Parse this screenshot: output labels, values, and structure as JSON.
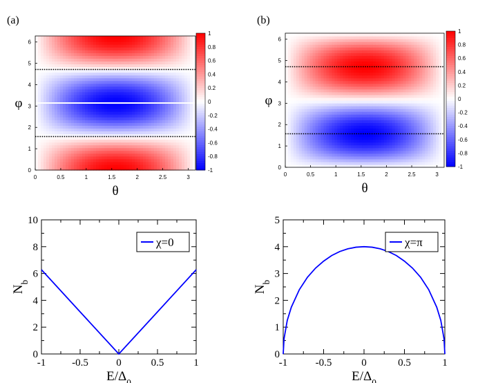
{
  "panel_labels": [
    "(a)",
    "(b)"
  ],
  "chart_data": [
    {
      "type": "heatmap",
      "panel": "(a)",
      "xlabel": "θ",
      "ylabel": "φ",
      "xlim": [
        0,
        3.14159
      ],
      "ylim": [
        0,
        6.28319
      ],
      "xticks": [
        "0",
        "0.5",
        "1",
        "1.5",
        "2",
        "2.5",
        "3"
      ],
      "yticks": [
        "0",
        "1",
        "2",
        "3",
        "4",
        "5",
        "6"
      ],
      "colorbar": {
        "range": [
          -1,
          1
        ],
        "ticks": [
          "1",
          "0.8",
          "0.6",
          "0.4",
          "0.2",
          "0",
          "-0.2",
          "-0.4",
          "-0.6",
          "-0.8",
          "-1"
        ],
        "low_color": "#0000ff",
        "mid_color": "#ffffff",
        "high_color": "#ff0000"
      },
      "function": "sin(theta) * cos(phi)",
      "reference_lines": [
        {
          "y": 1.5708,
          "style": "dotted",
          "color": "#000000"
        },
        {
          "y": 3.1416,
          "style": "solid",
          "color": "#ffffff"
        },
        {
          "y": 4.7124,
          "style": "dotted",
          "color": "#000000"
        }
      ]
    },
    {
      "type": "heatmap",
      "panel": "(b)",
      "xlabel": "θ",
      "ylabel": "φ",
      "xlim": [
        0,
        3.14159
      ],
      "ylim": [
        0,
        6.28319
      ],
      "xticks": [
        "0",
        "0.5",
        "1",
        "1.5",
        "2",
        "2.5",
        "3"
      ],
      "yticks": [
        "0",
        "1",
        "2",
        "3",
        "4",
        "5",
        "6"
      ],
      "colorbar": {
        "range": [
          -1,
          1
        ],
        "ticks": [
          "1",
          "0.8",
          "0.6",
          "0.4",
          "0.2",
          "0",
          "-0.2",
          "-0.4",
          "-0.6",
          "-0.8",
          "-1"
        ],
        "low_color": "#0000ff",
        "mid_color": "#ffffff",
        "high_color": "#ff0000"
      },
      "function": "-sin(theta) * sin(phi)",
      "reference_lines": [
        {
          "y": 1.5708,
          "style": "dotted",
          "color": "#000000"
        },
        {
          "y": 4.7124,
          "style": "dotted",
          "color": "#000000"
        }
      ]
    },
    {
      "type": "line",
      "panel": "bottom-left",
      "xlabel": "E/Δ0",
      "ylabel": "Nb",
      "xlim": [
        -1,
        1
      ],
      "ylim": [
        0,
        10
      ],
      "xticks": [
        "-1",
        "-0.5",
        "0",
        "0.5",
        "1"
      ],
      "yticks": [
        "0",
        "2",
        "4",
        "6",
        "8",
        "10"
      ],
      "legend": "top-right",
      "series": [
        {
          "name": "χ=0",
          "color": "#0000ff",
          "x": [
            -1,
            -0.5,
            0,
            0.5,
            1
          ],
          "y": [
            6.28,
            3.14,
            0,
            3.14,
            6.28
          ]
        }
      ]
    },
    {
      "type": "line",
      "panel": "bottom-right",
      "xlabel": "E/Δ0",
      "ylabel": "Nb",
      "xlim": [
        -1,
        1
      ],
      "ylim": [
        0,
        5
      ],
      "xticks": [
        "-1",
        "-0.5",
        "0",
        "0.5",
        "1"
      ],
      "yticks": [
        "0",
        "1",
        "2",
        "3",
        "4",
        "5"
      ],
      "legend": "top-right",
      "series": [
        {
          "name": "χ=π",
          "color": "#0000ff",
          "x": [
            -1,
            -0.99,
            -0.95,
            -0.9,
            -0.8,
            -0.7,
            -0.6,
            -0.5,
            -0.4,
            -0.3,
            -0.2,
            -0.1,
            0,
            0.1,
            0.2,
            0.3,
            0.4,
            0.5,
            0.6,
            0.7,
            0.8,
            0.9,
            0.95,
            0.99,
            1
          ],
          "y": [
            0,
            0.56,
            1.25,
            1.74,
            2.4,
            2.86,
            3.2,
            3.46,
            3.67,
            3.82,
            3.92,
            3.98,
            4,
            3.98,
            3.92,
            3.82,
            3.67,
            3.46,
            3.2,
            2.86,
            2.4,
            1.74,
            1.25,
            0.56,
            0
          ]
        }
      ]
    }
  ]
}
